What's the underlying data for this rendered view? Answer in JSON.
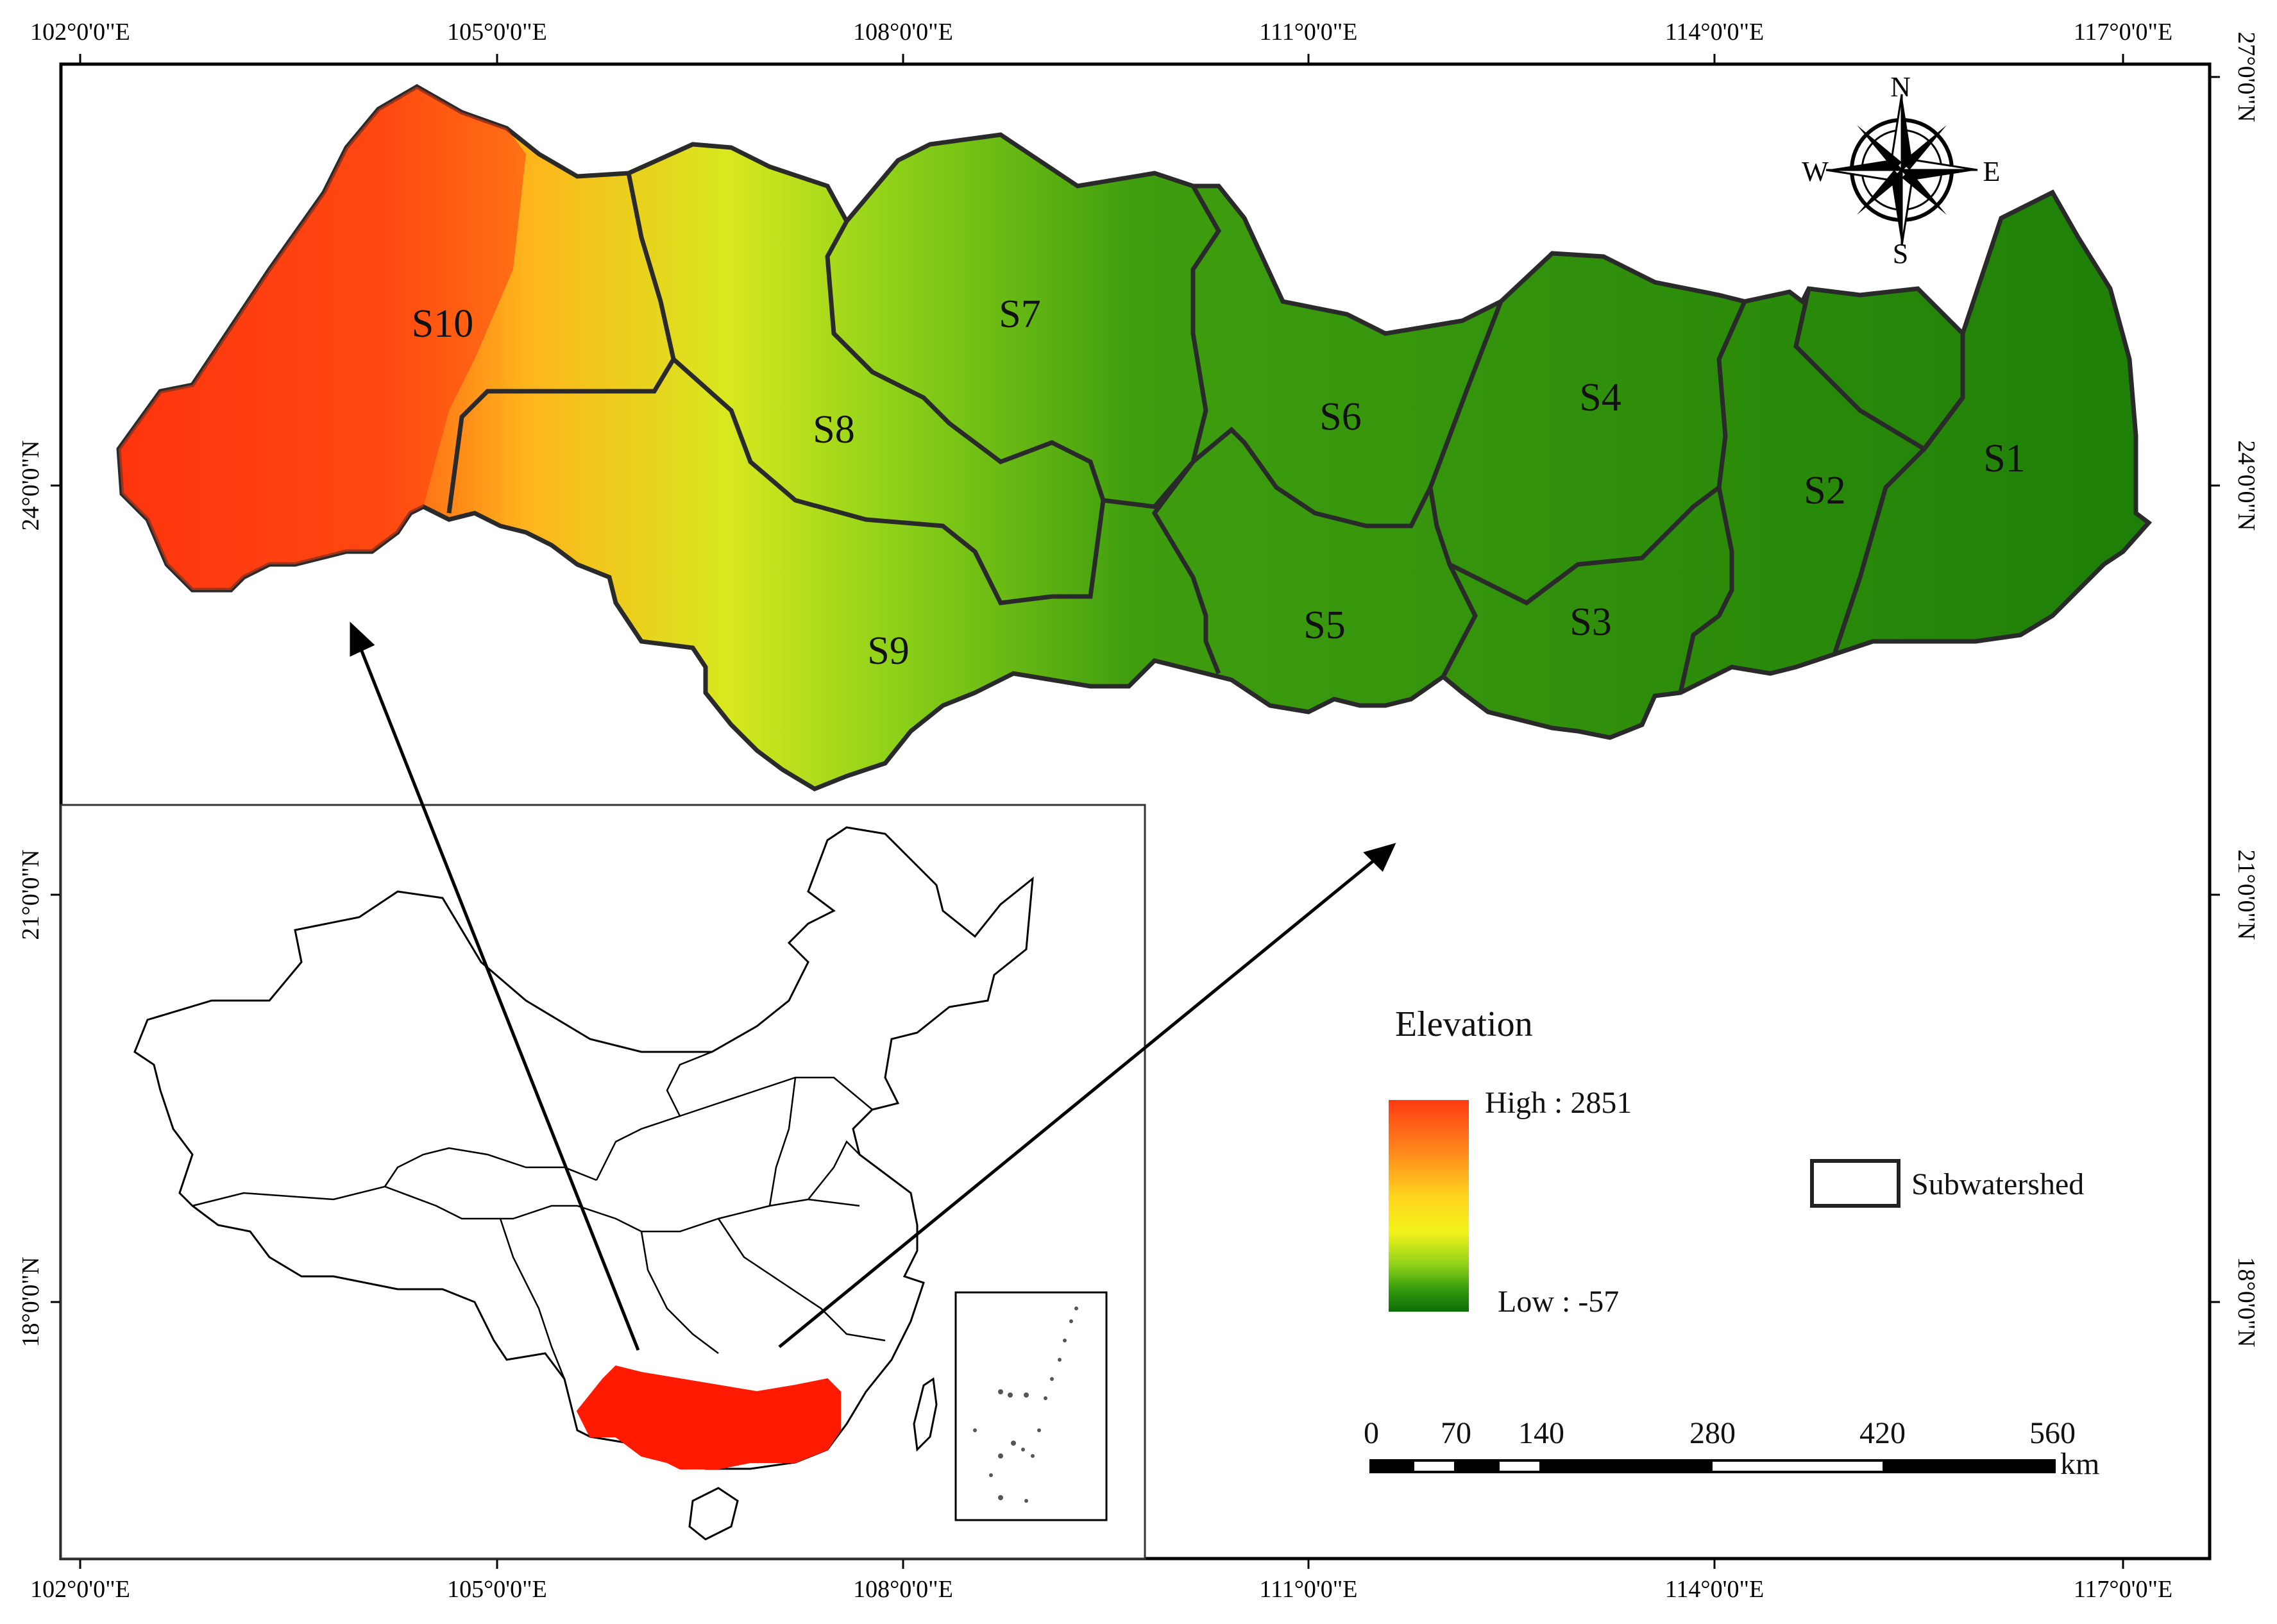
{
  "top_ticks": [
    "102°0'0\"E",
    "105°0'0\"E",
    "108°0'0\"E",
    "111°0'0\"E",
    "114°0'0\"E",
    "117°0'0\"E"
  ],
  "bottom_ticks": [
    "102°0'0\"E",
    "105°0'0\"E",
    "108°0'0\"E",
    "111°0'0\"E",
    "114°0'0\"E",
    "117°0'0\"E"
  ],
  "left_ticks": [
    "24°0'0\"N",
    "21°0'0\"N",
    "18°0'0\"N"
  ],
  "right_ticks": [
    "27°0'0\"N",
    "24°0'0\"N",
    "21°0'0\"N",
    "18°0'0\"N"
  ],
  "subwatersheds": [
    "S10",
    "S8",
    "S7",
    "S6",
    "S4",
    "S2",
    "S1",
    "S9",
    "S5",
    "S3"
  ],
  "compass": {
    "n": "N",
    "s": "S",
    "e": "E",
    "w": "W"
  },
  "legend": {
    "title": "Elevation",
    "high": "High : 2851",
    "low": "Low : -57",
    "subwatershed": "Subwatershed",
    "ramp_colors": [
      "#ff3a12",
      "#ff8a1c",
      "#ffd21e",
      "#f4f41a",
      "#8fd21a",
      "#2f9a0c",
      "#0e6e06"
    ]
  },
  "scale_bar": {
    "labels": [
      "0",
      "70",
      "140",
      "280",
      "420",
      "560"
    ],
    "unit": "km"
  },
  "highlight_color": "#ff1a00"
}
